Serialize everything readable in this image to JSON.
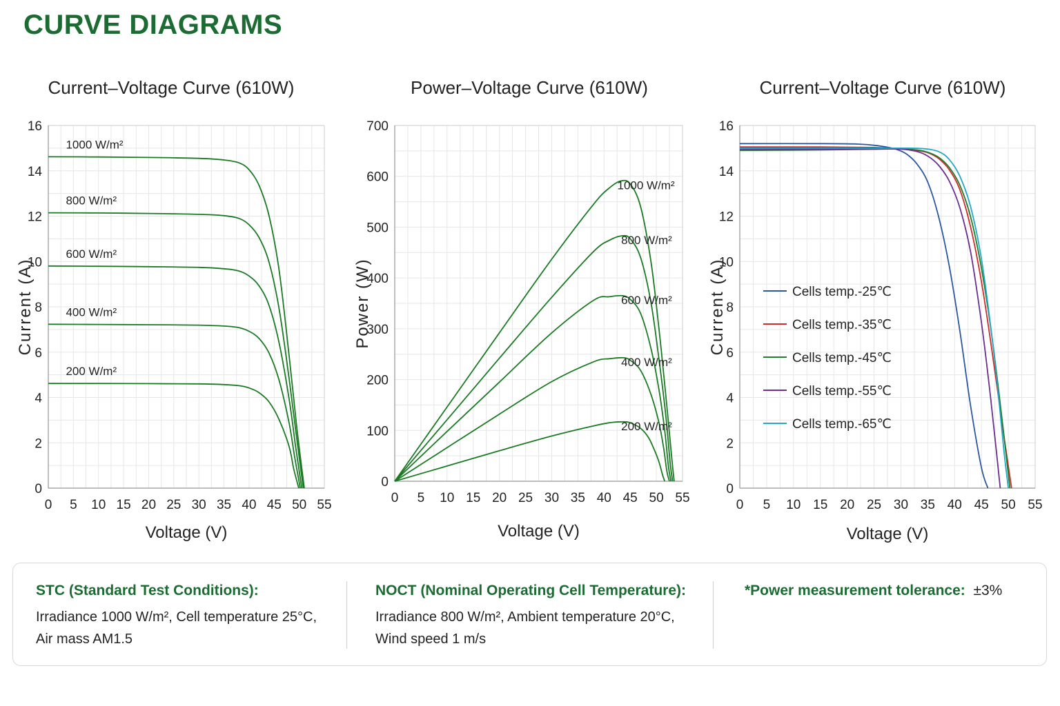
{
  "page": {
    "title": "CURVE DIAGRAMS"
  },
  "chart_data": [
    {
      "type": "line",
      "title": "Current–Voltage Curve (610W)",
      "xlabel": "Voltage (V)",
      "ylabel": "Current (A)",
      "xlim": [
        0,
        55
      ],
      "ylim": [
        0,
        16
      ],
      "xticks": [
        0,
        5,
        10,
        15,
        20,
        25,
        30,
        35,
        40,
        45,
        50,
        55
      ],
      "yticks": [
        0,
        2,
        4,
        6,
        8,
        10,
        12,
        14,
        16
      ],
      "grid": true,
      "line_color": "#1a7a24",
      "series": [
        {
          "name": "1000 W/m²",
          "x": [
            0,
            10,
            20,
            30,
            35,
            38,
            40,
            42,
            44,
            46,
            48,
            49.5,
            51.0
          ],
          "values": [
            14.62,
            14.61,
            14.59,
            14.55,
            14.48,
            14.35,
            14.05,
            13.35,
            12.0,
            9.6,
            5.8,
            2.7,
            0
          ]
        },
        {
          "name": "800 W/m²",
          "x": [
            0,
            10,
            20,
            30,
            35,
            38,
            40,
            42,
            44,
            46,
            48,
            49.5,
            50.8
          ],
          "values": [
            12.15,
            12.14,
            12.12,
            12.08,
            12.02,
            11.9,
            11.62,
            11.05,
            9.95,
            7.9,
            4.8,
            2.2,
            0
          ]
        },
        {
          "name": "600 W/m²",
          "x": [
            0,
            10,
            20,
            30,
            35,
            38,
            40,
            42,
            44,
            46,
            48,
            49.3,
            50.5
          ],
          "values": [
            9.8,
            9.79,
            9.77,
            9.74,
            9.68,
            9.58,
            9.36,
            8.92,
            8.05,
            6.4,
            3.9,
            1.8,
            0
          ]
        },
        {
          "name": "400 W/m²",
          "x": [
            0,
            10,
            20,
            30,
            35,
            38,
            40,
            42,
            44,
            46,
            48,
            49.1,
            50.2
          ],
          "values": [
            7.23,
            7.22,
            7.21,
            7.19,
            7.15,
            7.08,
            6.92,
            6.6,
            5.95,
            4.75,
            2.85,
            1.35,
            0
          ]
        },
        {
          "name": "200 W/m²",
          "x": [
            0,
            10,
            20,
            30,
            35,
            38,
            40,
            42,
            44,
            46,
            48,
            48.9,
            49.9
          ],
          "values": [
            4.62,
            4.62,
            4.61,
            4.6,
            4.57,
            4.52,
            4.42,
            4.21,
            3.8,
            3.02,
            1.82,
            0.85,
            0
          ]
        }
      ]
    },
    {
      "type": "line",
      "title": "Power–Voltage Curve (610W)",
      "xlabel": "Voltage (V)",
      "ylabel": "Power (W)",
      "xlim": [
        0,
        55
      ],
      "ylim": [
        0,
        700
      ],
      "xticks": [
        0,
        5,
        10,
        15,
        20,
        25,
        30,
        35,
        40,
        45,
        50,
        55
      ],
      "yticks": [
        0,
        100,
        200,
        300,
        400,
        500,
        600,
        700
      ],
      "grid": true,
      "line_color": "#1a7a24",
      "series": [
        {
          "name": "1000 W/m²",
          "x": [
            0,
            10,
            20,
            30,
            38,
            41,
            43.3,
            45,
            47,
            49,
            50.5,
            51.8,
            52.9,
            53.4
          ],
          "values": [
            0,
            146,
            292,
            437,
            545,
            577,
            591,
            585,
            540,
            430,
            300,
            170,
            50,
            0
          ]
        },
        {
          "name": "800 W/m²",
          "x": [
            0,
            10,
            20,
            30,
            38,
            41,
            43.5,
            45,
            47,
            49,
            50.5,
            51.8,
            52.6,
            53.1
          ],
          "values": [
            0,
            121,
            242,
            362,
            452,
            474,
            483,
            477,
            440,
            350,
            240,
            130,
            40,
            0
          ]
        },
        {
          "name": "600 W/m²",
          "x": [
            0,
            10,
            20,
            30,
            38,
            41,
            43.5,
            45,
            47,
            49,
            50.5,
            51.6,
            52.3,
            52.8
          ],
          "values": [
            0,
            98,
            195,
            292,
            356,
            363,
            365,
            358,
            330,
            260,
            180,
            100,
            30,
            0
          ]
        },
        {
          "name": "400 W/m²",
          "x": [
            0,
            10,
            20,
            30,
            38,
            41,
            43.7,
            45,
            47,
            49,
            50.5,
            51.4,
            52.0,
            52.5
          ],
          "values": [
            0,
            66,
            132,
            196,
            235,
            241,
            243,
            238,
            218,
            170,
            115,
            65,
            20,
            0
          ]
        },
        {
          "name": "200 W/m²",
          "x": [
            0,
            10,
            20,
            30,
            38,
            41,
            43.5,
            45,
            47,
            48.5,
            49.6,
            50.5,
            51.2,
            51.6
          ],
          "values": [
            0,
            30,
            60,
            89,
            109,
            115,
            117,
            115,
            104,
            86,
            62,
            38,
            12,
            0
          ]
        }
      ]
    },
    {
      "type": "line",
      "title": "Current–Voltage Curve (610W)",
      "xlabel": "Voltage (V)",
      "ylabel": "Current (A)",
      "xlim": [
        0,
        55
      ],
      "ylim": [
        0,
        16
      ],
      "xticks": [
        0,
        5,
        10,
        15,
        20,
        25,
        30,
        35,
        40,
        45,
        50,
        55
      ],
      "yticks": [
        0,
        2,
        4,
        6,
        8,
        10,
        12,
        14,
        16
      ],
      "grid": true,
      "legend": "center-left",
      "series": [
        {
          "name": "Cells temp.-25℃",
          "color": "#2b56a0",
          "x": [
            0,
            15,
            22,
            26,
            29,
            31,
            33,
            35,
            37,
            39,
            41,
            43,
            45,
            46.2
          ],
          "values": [
            15.2,
            15.2,
            15.18,
            15.1,
            14.96,
            14.75,
            14.3,
            13.5,
            12.0,
            9.8,
            6.9,
            3.6,
            0.9,
            0
          ]
        },
        {
          "name": "Cells temp.-35℃",
          "color": "#d02a2a",
          "x": [
            0,
            15,
            25,
            30,
            33,
            35,
            37,
            39,
            41,
            43,
            45,
            47,
            49,
            50.6
          ],
          "values": [
            15.05,
            15.05,
            15.03,
            14.98,
            14.9,
            14.8,
            14.55,
            14.05,
            13.15,
            11.5,
            9.1,
            6.0,
            2.6,
            0
          ]
        },
        {
          "name": "Cells temp.-45℃",
          "color": "#1f7d2b",
          "x": [
            0,
            15,
            25,
            30,
            33,
            35,
            37,
            39,
            41,
            43,
            45,
            47,
            49,
            50.3
          ],
          "values": [
            14.9,
            14.92,
            14.95,
            14.97,
            14.92,
            14.82,
            14.6,
            14.15,
            13.35,
            11.95,
            9.7,
            6.6,
            2.7,
            0
          ]
        },
        {
          "name": "Cells temp.-55℃",
          "color": "#6a2d91",
          "x": [
            0,
            15,
            25,
            30,
            33,
            35,
            37,
            39,
            41,
            43,
            45,
            46.5,
            47.7,
            48.5
          ],
          "values": [
            14.95,
            14.96,
            14.97,
            14.96,
            14.85,
            14.65,
            14.25,
            13.55,
            12.35,
            10.4,
            7.3,
            4.4,
            1.8,
            0
          ]
        },
        {
          "name": "Cells temp.-65℃",
          "color": "#22a7c7",
          "x": [
            0,
            15,
            25,
            30,
            34,
            37,
            39,
            41,
            43,
            45,
            47,
            48.2,
            49.2,
            50.0
          ],
          "values": [
            15.0,
            15.0,
            15.0,
            15.0,
            14.98,
            14.85,
            14.5,
            13.75,
            12.4,
            10.1,
            6.6,
            4.0,
            1.6,
            0
          ]
        }
      ]
    }
  ],
  "footer": {
    "stc_title": "STC (Standard Test Conditions):",
    "stc_line1": "Irradiance 1000 W/m², Cell temperature 25°C,",
    "stc_line2": "Air mass AM1.5",
    "noct_title": "NOCT (Nominal Operating Cell Temperature):",
    "noct_line1": "Irradiance 800 W/m², Ambient temperature 20°C,",
    "noct_line2": "Wind speed 1 m/s",
    "tolerance_label": "*Power measurement tolerance:",
    "tolerance_value": "±3%"
  }
}
